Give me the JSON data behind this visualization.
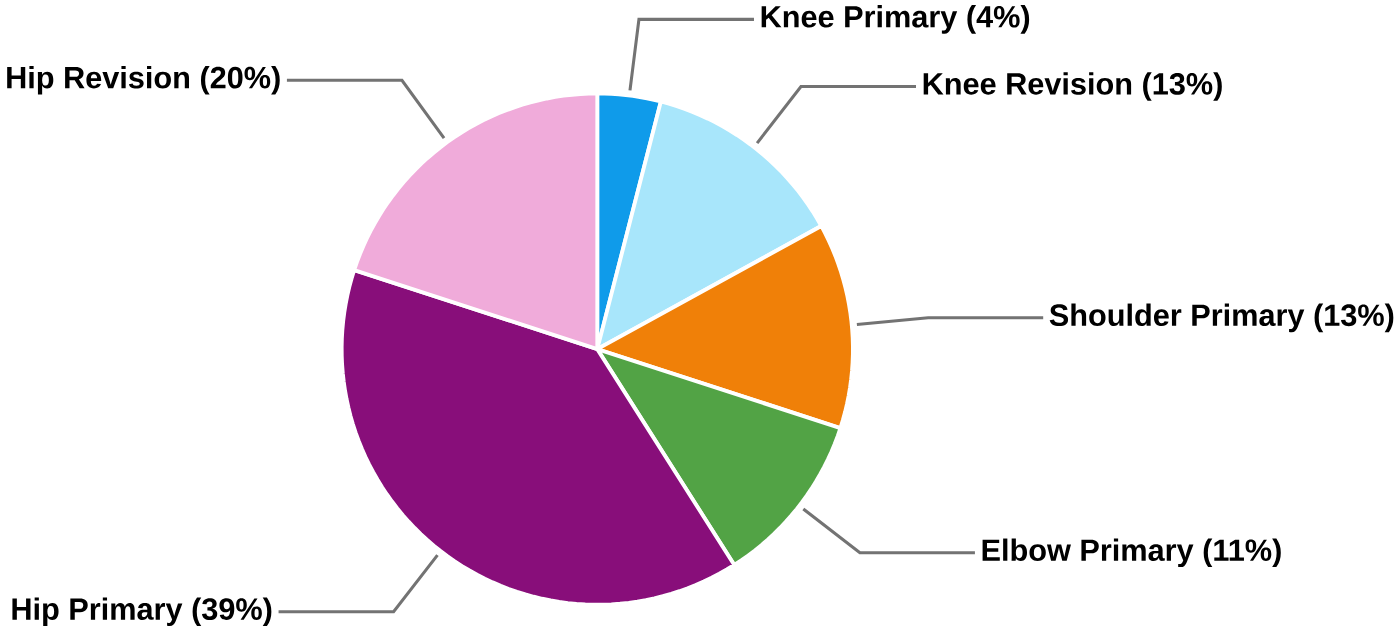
{
  "chart_data": {
    "type": "pie",
    "categories": [
      "Knee Primary (4%)",
      "Knee Revision (13%)",
      "Shoulder Primary (13%)",
      "Elbow Primary (11%)",
      "Hip Primary (39%)",
      "Hip Revision (20%)"
    ],
    "values": [
      4,
      13,
      13,
      11,
      39,
      20
    ],
    "colors": [
      "#0f9bea",
      "#a8e6fb",
      "#f08008",
      "#52a345",
      "#880e7a",
      "#f0abda"
    ]
  }
}
